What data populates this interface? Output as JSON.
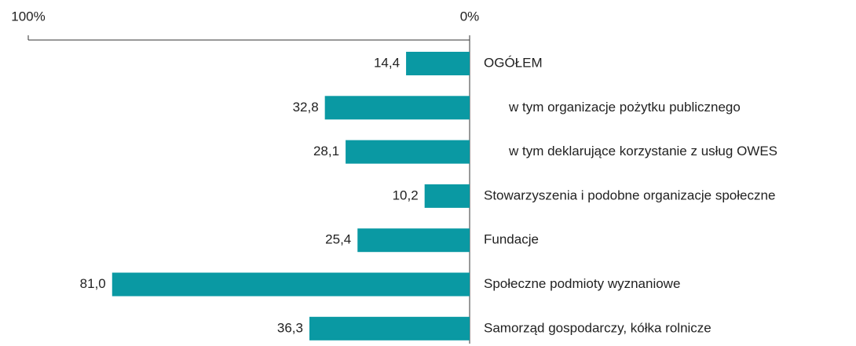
{
  "chart_data": {
    "type": "bar",
    "orientation": "horizontal",
    "categories": [
      "OGÓŁEM",
      "w tym organizacje pożytku publicznego",
      "w tym deklarujące korzystanie z usług OWES",
      "Stowarzyszenia i podobne organizacje społeczne",
      "Fundacje",
      "Społeczne podmioty wyznaniowe",
      "Samorząd gospodarczy, kółka rolnicze"
    ],
    "values": [
      14.4,
      32.8,
      28.1,
      10.2,
      25.4,
      81.0,
      36.3
    ],
    "value_labels": [
      "14,4",
      "32,8",
      "28,1",
      "10,2",
      "25,4",
      "81,0",
      "36,3"
    ],
    "color": "#0a99a3",
    "xlim": [
      100,
      0
    ],
    "xticks": [
      {
        "value": 100,
        "label": "100%"
      },
      {
        "value": 0,
        "label": "0%"
      }
    ]
  }
}
